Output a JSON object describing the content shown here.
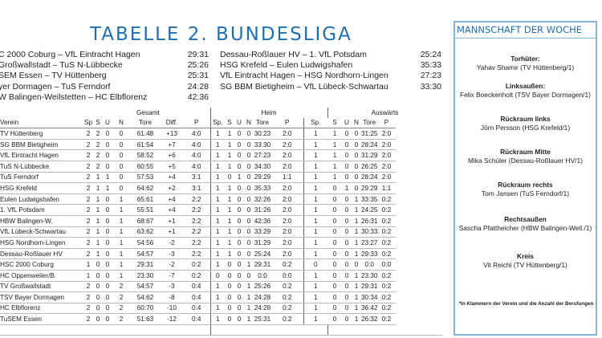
{
  "title": "TABELLE 2. BUNDESLIGA",
  "results_left": [
    {
      "match": "C 2000 Coburg – VfL Eintracht Hagen",
      "score": "29:31"
    },
    {
      "match": "Großwallstadt – TuS N-Lübbecke",
      "score": "25:26"
    },
    {
      "match": "SEM Essen – TV Hüttenberg",
      "score": "25:31"
    },
    {
      "match": "yer Dormagen – TuS Ferndorf",
      "score": "24:28"
    },
    {
      "match": "W Balingen-Weilstetten – HC Elbflorenz",
      "score": "42:36"
    }
  ],
  "results_right": [
    {
      "match": "Dessau-Roßlauer HV – 1. VfL Potsdam",
      "score": "25:24"
    },
    {
      "match": "HSG Krefeld – Eulen Ludwigshafen",
      "score": "35:33"
    },
    {
      "match": "VfL Eintracht Hagen – HSG Nordhorn-Lingen",
      "score": "27:23"
    },
    {
      "match": "SG BBM Bietigheim – VfL Lübeck-Schwartau",
      "score": "33:30"
    }
  ],
  "groups": {
    "gesamt": "Gesamt",
    "heim": "Heim",
    "auswaerts": "Auswärts"
  },
  "columns": {
    "verein": "Verein",
    "gesamt": [
      "Sp",
      "S",
      "U",
      "N",
      "Tore",
      "Diff.",
      "P"
    ],
    "heim": [
      "Sp.",
      "S",
      "U",
      "N",
      "Tore",
      "P"
    ],
    "auswaerts": [
      "Sp.",
      "S",
      "U",
      "N",
      "Tore",
      "P"
    ]
  },
  "standings": [
    {
      "team": "TV Hüttenberg",
      "g": [
        "2",
        "2",
        "0",
        "0",
        "61:48",
        "+13",
        "4:0"
      ],
      "h": [
        "1",
        "1",
        "0",
        "0",
        "30:23",
        "2:0"
      ],
      "a": [
        "1",
        "1",
        "0",
        "0",
        "31:25",
        "2:0"
      ]
    },
    {
      "team": "SG BBM Bietigheim",
      "g": [
        "2",
        "2",
        "0",
        "0",
        "61:54",
        "+7",
        "4:0"
      ],
      "h": [
        "1",
        "1",
        "0",
        "0",
        "33:30",
        "2:0"
      ],
      "a": [
        "1",
        "1",
        "0",
        "0",
        "28:24",
        "2:0"
      ]
    },
    {
      "team": "VfL Eintracht Hagen",
      "g": [
        "2",
        "2",
        "0",
        "0",
        "58:52",
        "+6",
        "4:0"
      ],
      "h": [
        "1",
        "1",
        "0",
        "0",
        "27:23",
        "2:0"
      ],
      "a": [
        "1",
        "1",
        "0",
        "0",
        "31:29",
        "2:0"
      ]
    },
    {
      "team": "TuS N-Lübbecke",
      "g": [
        "2",
        "2",
        "0",
        "0",
        "60:55",
        "+5",
        "4:0"
      ],
      "h": [
        "1",
        "1",
        "0",
        "0",
        "34:30",
        "2:0"
      ],
      "a": [
        "1",
        "1",
        "0",
        "0",
        "26:25",
        "2:0"
      ]
    },
    {
      "team": "TuS Ferndorf",
      "g": [
        "2",
        "1",
        "1",
        "0",
        "57:53",
        "+4",
        "3:1"
      ],
      "h": [
        "1",
        "0",
        "1",
        "0",
        "29:29",
        "1:1"
      ],
      "a": [
        "1",
        "1",
        "0",
        "0",
        "28:24",
        "2:0"
      ]
    },
    {
      "team": "HSG Krefeld",
      "g": [
        "2",
        "1",
        "1",
        "0",
        "64:62",
        "+2",
        "3:1"
      ],
      "h": [
        "1",
        "1",
        "0",
        "0",
        "35:33",
        "2:0"
      ],
      "a": [
        "1",
        "0",
        "1",
        "0",
        "29:29",
        "1:1"
      ]
    },
    {
      "team": "Eulen Ludwigshafen",
      "g": [
        "2",
        "1",
        "0",
        "1",
        "65:61",
        "+4",
        "2:2"
      ],
      "h": [
        "1",
        "1",
        "0",
        "0",
        "32:26",
        "2:0"
      ],
      "a": [
        "1",
        "0",
        "0",
        "1",
        "33:35",
        "0:2"
      ]
    },
    {
      "team": "1. VfL Potsdam",
      "g": [
        "2",
        "1",
        "0",
        "1",
        "55:51",
        "+4",
        "2:2"
      ],
      "h": [
        "1",
        "1",
        "0",
        "0",
        "31:26",
        "2:0"
      ],
      "a": [
        "1",
        "0",
        "0",
        "1",
        "24:25",
        "0:2"
      ]
    },
    {
      "team": "HBW Balingen-W.",
      "g": [
        "2",
        "1",
        "0",
        "1",
        "68:67",
        "+1",
        "2:2"
      ],
      "h": [
        "1",
        "1",
        "0",
        "0",
        "42:36",
        "2:0"
      ],
      "a": [
        "1",
        "0",
        "0",
        "1",
        "26:31",
        "0:2"
      ]
    },
    {
      "team": "VfL Lübeck-Schwartau",
      "g": [
        "2",
        "1",
        "0",
        "1",
        "63:62",
        "+1",
        "2:2"
      ],
      "h": [
        "1",
        "1",
        "0",
        "0",
        "33:29",
        "2:0"
      ],
      "a": [
        "1",
        "0",
        "0",
        "1",
        "30:33",
        "0:2"
      ]
    },
    {
      "team": "HSG Nordhorn-Lingen",
      "g": [
        "2",
        "1",
        "0",
        "1",
        "54:56",
        "-2",
        "2:2"
      ],
      "h": [
        "1",
        "1",
        "0",
        "0",
        "31:29",
        "2:0"
      ],
      "a": [
        "1",
        "0",
        "0",
        "1",
        "23:27",
        "0:2"
      ]
    },
    {
      "team": "Dessau-Roßlauer HV",
      "g": [
        "2",
        "1",
        "0",
        "1",
        "54:57",
        "-3",
        "2:2"
      ],
      "h": [
        "1",
        "1",
        "0",
        "0",
        "25:24",
        "2:0"
      ],
      "a": [
        "1",
        "0",
        "0",
        "1",
        "29:33",
        "0:2"
      ]
    },
    {
      "team": "HSC 2000 Coburg",
      "g": [
        "1",
        "0",
        "0",
        "1",
        "29:31",
        "-2",
        "0:2"
      ],
      "h": [
        "1",
        "0",
        "0",
        "1",
        "29:31",
        "0:2"
      ],
      "a": [
        "0",
        "0",
        "0",
        "0",
        "0:0",
        "0:0"
      ]
    },
    {
      "team": "HC Oppenweiler/B.",
      "g": [
        "1",
        "0",
        "0",
        "1",
        "23:30",
        "-7",
        "0:2"
      ],
      "h": [
        "0",
        "0",
        "0",
        "0",
        "0:0",
        "0:0"
      ],
      "a": [
        "1",
        "0",
        "0",
        "1",
        "23:30",
        "0:2"
      ]
    },
    {
      "team": "TV Großwallstadt",
      "g": [
        "2",
        "0",
        "0",
        "2",
        "54:57",
        "-3",
        "0:4"
      ],
      "h": [
        "1",
        "0",
        "0",
        "1",
        "25:26",
        "0:2"
      ],
      "a": [
        "1",
        "0",
        "0",
        "1",
        "29:31",
        "0:2"
      ]
    },
    {
      "team": "TSV Bayer Dormagen",
      "g": [
        "2",
        "0",
        "0",
        "2",
        "54:62",
        "-8",
        "0:4"
      ],
      "h": [
        "1",
        "0",
        "0",
        "1",
        "24:28",
        "0:2"
      ],
      "a": [
        "1",
        "0",
        "0",
        "1",
        "30:34",
        "0:2"
      ]
    },
    {
      "team": "HC Elbflorenz",
      "g": [
        "2",
        "0",
        "0",
        "2",
        "60:70",
        "-10",
        "0:4"
      ],
      "h": [
        "1",
        "0",
        "0",
        "1",
        "24:28",
        "0:2"
      ],
      "a": [
        "1",
        "0",
        "0",
        "1",
        "36:42",
        "0:2"
      ]
    },
    {
      "team": "TuSEM Essen",
      "g": [
        "2",
        "0",
        "0",
        "2",
        "51:63",
        "-12",
        "0:4"
      ],
      "h": [
        "1",
        "0",
        "0",
        "1",
        "25:31",
        "0:2"
      ],
      "a": [
        "1",
        "0",
        "0",
        "1",
        "26:32",
        "0:2"
      ]
    }
  ],
  "team_of_week": {
    "title": "MANNSCHAFT DER WOCHE",
    "positions": [
      {
        "role": "Torhüter:",
        "player": "Yahav Shamir (TV Hüttenberg/1)"
      },
      {
        "role": "Linksaußen:",
        "player": "Felix Boeckenholt (TSV Bayer Dormagen/1)"
      },
      {
        "role": "Rückraum links",
        "player": "Jörn Persson (HSG Krefeld/1)"
      },
      {
        "role": "Rückraum Mitte",
        "player": "Mika Schüler (Dessau-Roßlauer HV/1)"
      },
      {
        "role": "Rückraum rechts",
        "player": "Tom Jansen (TuS Ferndorf/1)"
      },
      {
        "role": "Rechtsaußen",
        "player": "Sascha Pfattheicher (HBW Balingen-Weil./1)"
      },
      {
        "role": "Kreis",
        "player": "Vit Reichl (TV Hüttenberg/1)"
      }
    ],
    "note": "*In Klammern der Verein und die Anzahl der Berufungen"
  }
}
